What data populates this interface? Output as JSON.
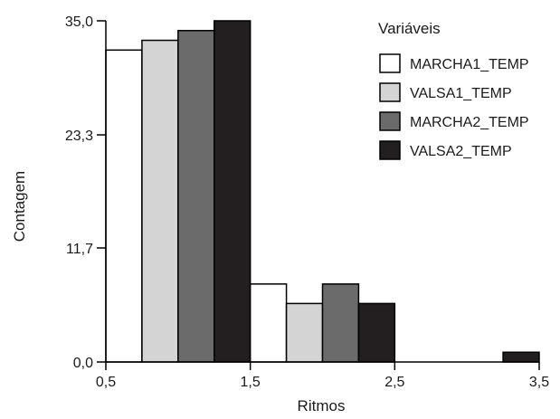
{
  "chart_data": {
    "type": "bar",
    "title": "",
    "xlabel": "Ritmos",
    "ylabel": "Contagem",
    "xlim": [
      0.5,
      3.5
    ],
    "ylim": [
      0,
      35.0
    ],
    "x_ticks": [
      "0,5",
      "1,5",
      "2,5",
      "3,5"
    ],
    "y_ticks": [
      "0,0",
      "11,7",
      "23,3",
      "35,0"
    ],
    "grid": false,
    "legend_placement": "top-right",
    "legend_title": "Variáveis",
    "groups": [
      {
        "center": 1.0,
        "values": [
          32,
          33,
          34,
          35
        ]
      },
      {
        "center": 2.0,
        "values": [
          8,
          6,
          8,
          6
        ]
      },
      {
        "center": 3.0,
        "values": [
          0,
          0,
          0,
          1
        ]
      }
    ],
    "series": [
      {
        "name": "MARCHA1_TEMP",
        "color": "#ffffff"
      },
      {
        "name": "VALSA1_TEMP",
        "color": "#d4d4d4"
      },
      {
        "name": "MARCHA2_TEMP",
        "color": "#6b6b6b"
      },
      {
        "name": "VALSA2_TEMP",
        "color": "#231f20"
      }
    ]
  }
}
